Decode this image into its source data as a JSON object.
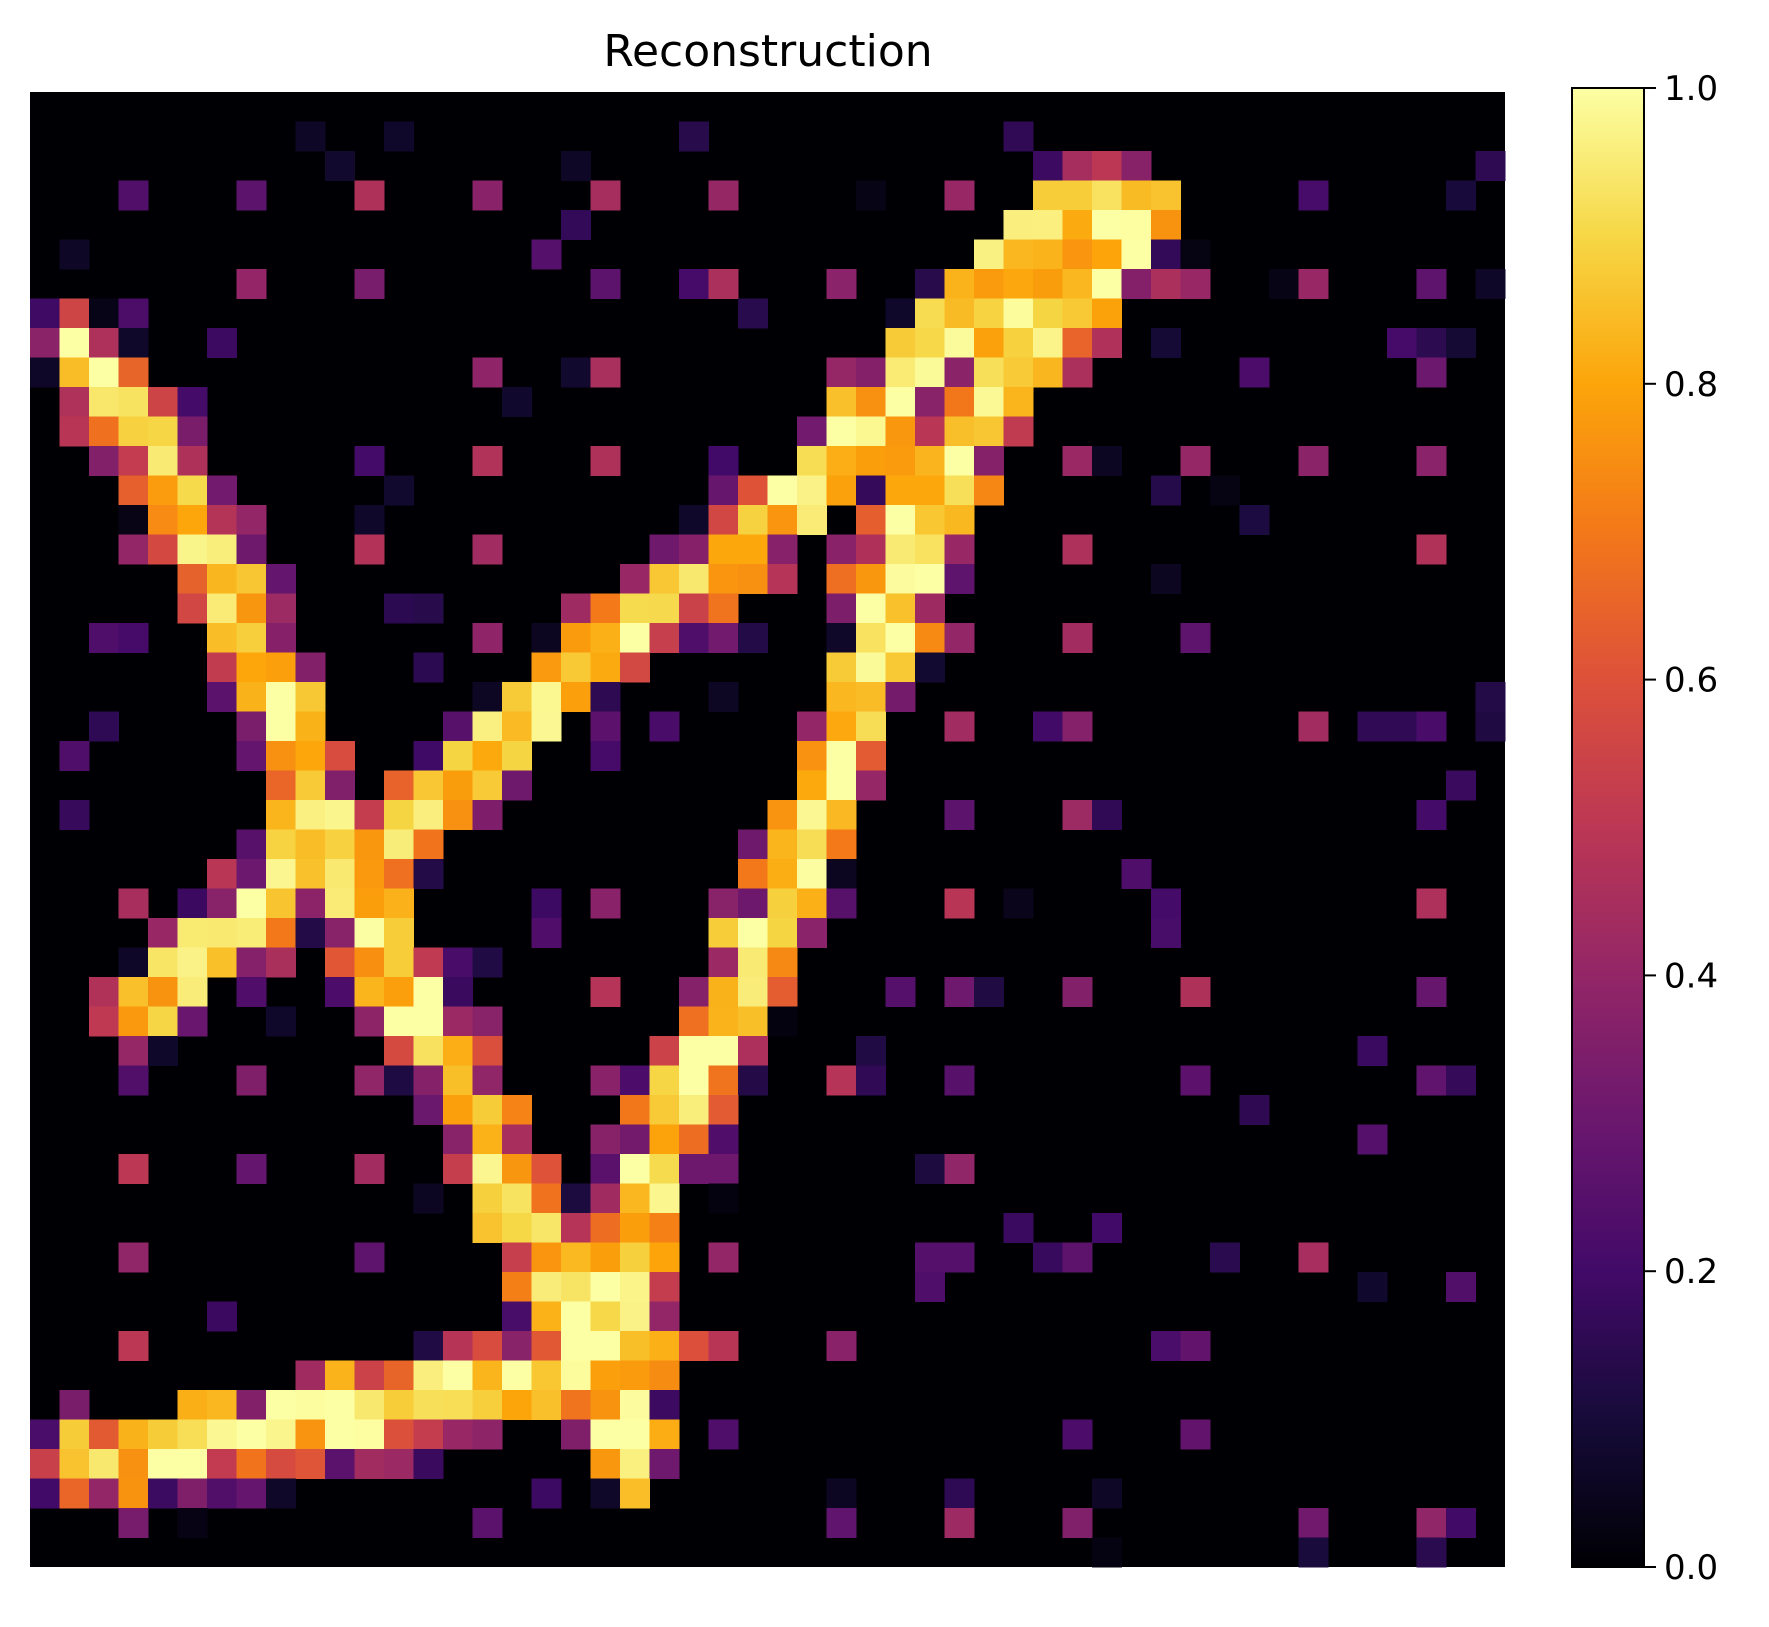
{
  "chart_data": {
    "type": "heatmap",
    "title": "Reconstruction",
    "xlabel": "",
    "ylabel": "",
    "colormap": "inferno",
    "grid": false,
    "axes_visible": false,
    "colorbar": {
      "placement": "right",
      "range": [
        0.0,
        1.0
      ],
      "ticks": [
        0.0,
        0.2,
        0.4,
        0.6,
        0.8,
        1.0
      ],
      "tick_labels": [
        "0.0",
        "0.2",
        "0.4",
        "0.6",
        "0.8",
        "1.0"
      ]
    },
    "grid_size": [
      50,
      50
    ],
    "strokes": [
      [
        [
          1,
          8
        ],
        [
          4,
          12
        ],
        [
          7,
          18
        ],
        [
          9,
          23
        ],
        [
          11,
          28
        ],
        [
          14,
          33
        ],
        [
          17,
          39
        ],
        [
          19,
          43
        ],
        [
          20,
          46
        ]
      ],
      [
        [
          3,
          31
        ],
        [
          6,
          28
        ],
        [
          9,
          26
        ],
        [
          11,
          25
        ],
        [
          13,
          24
        ],
        [
          16,
          21
        ],
        [
          19,
          18
        ],
        [
          22,
          16
        ],
        [
          25,
          14
        ],
        [
          28,
          11
        ],
        [
          30,
          8
        ],
        [
          33,
          5
        ],
        [
          35,
          3
        ],
        [
          37,
          3
        ]
      ],
      [
        [
          1,
          46
        ],
        [
          7,
          45
        ],
        [
          12,
          44
        ],
        [
          17,
          43
        ],
        [
          21,
          42
        ]
      ],
      [
        [
          19,
          43
        ],
        [
          20,
          38
        ],
        [
          21,
          35
        ],
        [
          23,
          31
        ],
        [
          25,
          27
        ],
        [
          27,
          22
        ],
        [
          29,
          17
        ],
        [
          31,
          12
        ],
        [
          33,
          8
        ],
        [
          35,
          5
        ],
        [
          37,
          4
        ]
      ],
      [
        [
          28,
          17
        ],
        [
          30,
          13
        ],
        [
          32,
          10
        ],
        [
          34,
          7
        ],
        [
          36,
          6
        ],
        [
          37,
          3
        ]
      ]
    ],
    "noise_level": 0.3
  }
}
